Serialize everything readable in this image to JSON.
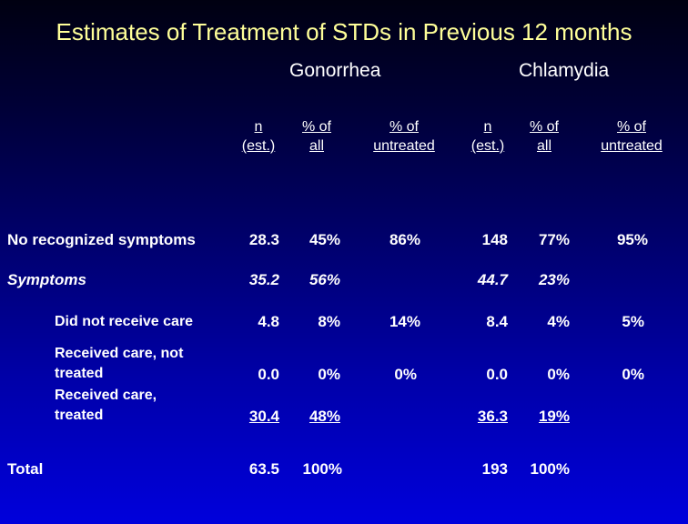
{
  "title": "Estimates of Treatment of STDs in Previous 12 months",
  "groups": {
    "gonorrhea": "Gonorrhea",
    "chlamydia": "Chlamydia"
  },
  "headers": {
    "n_line1": "n",
    "n_line2": "(est.)",
    "pct_all_line1": "% of",
    "pct_all_line2": "all",
    "pct_untreated_line1": "% of",
    "pct_untreated_line2": "untreated"
  },
  "rows": [
    {
      "label": "No recognized symptoms",
      "g_n": "28.3",
      "g_all": "45%",
      "g_untreated": "86%",
      "c_n": "148",
      "c_all": "77%",
      "c_untreated": "95%"
    },
    {
      "label": "Symptoms",
      "g_n": "35.2",
      "g_all": "56%",
      "g_untreated": "",
      "c_n": "44.7",
      "c_all": "23%",
      "c_untreated": ""
    },
    {
      "label": "Did not receive care",
      "g_n": "4.8",
      "g_all": "8%",
      "g_untreated": "14%",
      "c_n": "8.4",
      "c_all": "4%",
      "c_untreated": "5%"
    },
    {
      "label_line1": "Received care, not",
      "label_line2": "treated",
      "g_n": "0.0",
      "g_all": "0%",
      "g_untreated": "0%",
      "c_n": "0.0",
      "c_all": "0%",
      "c_untreated": "0%"
    },
    {
      "label_line1": "Received care,",
      "label_line2": "treated",
      "g_n": "30.4",
      "g_all": "48%",
      "g_untreated": "",
      "c_n": "36.3",
      "c_all": "19%",
      "c_untreated": ""
    },
    {
      "label": "Total",
      "g_n": "63.5",
      "g_all": "100%",
      "g_untreated": "",
      "c_n": "193",
      "c_all": "100%",
      "c_untreated": ""
    }
  ]
}
